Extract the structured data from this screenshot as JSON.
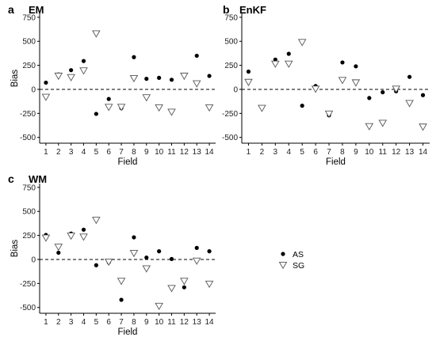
{
  "chart_data": [
    {
      "type": "scatter",
      "panel_label": "a",
      "title": "EM",
      "xlabel": "Field",
      "ylabel": "Bias",
      "xlim": [
        0.5,
        14.5
      ],
      "ylim": [
        -560,
        790
      ],
      "yticks": [
        750,
        500,
        250,
        0,
        -250,
        -500
      ],
      "categories": [
        "1",
        "2",
        "3",
        "4",
        "5",
        "6",
        "7",
        "8",
        "9",
        "10",
        "11",
        "12",
        "13",
        "14"
      ],
      "reference_line": 0,
      "grid": false,
      "series": [
        {
          "name": "AS",
          "marker": "filled-circle",
          "values": [
            70,
            155,
            200,
            295,
            -255,
            -100,
            -195,
            335,
            110,
            120,
            100,
            150,
            350,
            140
          ]
        },
        {
          "name": "SG",
          "marker": "open-triangle-down",
          "values": [
            -80,
            140,
            125,
            195,
            580,
            -185,
            -185,
            115,
            -85,
            -190,
            -235,
            140,
            60,
            -190
          ]
        }
      ]
    },
    {
      "type": "scatter",
      "panel_label": "b",
      "title": "EnKF",
      "xlabel": "Field",
      "ylabel": "",
      "xlim": [
        0.5,
        14.5
      ],
      "ylim": [
        -560,
        790
      ],
      "yticks": [
        750,
        500,
        250,
        0,
        -250,
        -500
      ],
      "categories": [
        "1",
        "2",
        "3",
        "4",
        "5",
        "6",
        "7",
        "8",
        "9",
        "10",
        "11",
        "12",
        "13",
        "14"
      ],
      "reference_line": 0,
      "grid": false,
      "series": [
        {
          "name": "AS",
          "marker": "filled-circle",
          "values": [
            185,
            -185,
            310,
            370,
            -170,
            35,
            -270,
            280,
            240,
            -90,
            -30,
            -20,
            130,
            -60
          ]
        },
        {
          "name": "SG",
          "marker": "open-triangle-down",
          "values": [
            75,
            -195,
            265,
            265,
            490,
            5,
            -255,
            95,
            70,
            -385,
            -350,
            5,
            -145,
            -390
          ]
        }
      ]
    },
    {
      "type": "scatter",
      "panel_label": "c",
      "title": "WM",
      "xlabel": "Field",
      "ylabel": "Bias",
      "xlim": [
        0.5,
        14.5
      ],
      "ylim": [
        -560,
        790
      ],
      "yticks": [
        750,
        500,
        250,
        0,
        -250,
        -500
      ],
      "categories": [
        "1",
        "2",
        "3",
        "4",
        "5",
        "6",
        "7",
        "8",
        "9",
        "10",
        "11",
        "12",
        "13",
        "14"
      ],
      "reference_line": 0,
      "grid": false,
      "series": [
        {
          "name": "AS",
          "marker": "filled-circle",
          "values": [
            255,
            70,
            270,
            310,
            -60,
            -30,
            -420,
            230,
            20,
            85,
            5,
            -290,
            120,
            85
          ]
        },
        {
          "name": "SG",
          "marker": "open-triangle-down",
          "values": [
            225,
            130,
            245,
            235,
            410,
            -25,
            -225,
            65,
            -95,
            -485,
            -300,
            -225,
            -15,
            -255
          ]
        }
      ]
    }
  ],
  "legend": {
    "placement": "bottom-right",
    "entries": [
      {
        "label": "AS",
        "marker": "filled-circle"
      },
      {
        "label": "SG",
        "marker": "open-triangle-down"
      }
    ]
  }
}
